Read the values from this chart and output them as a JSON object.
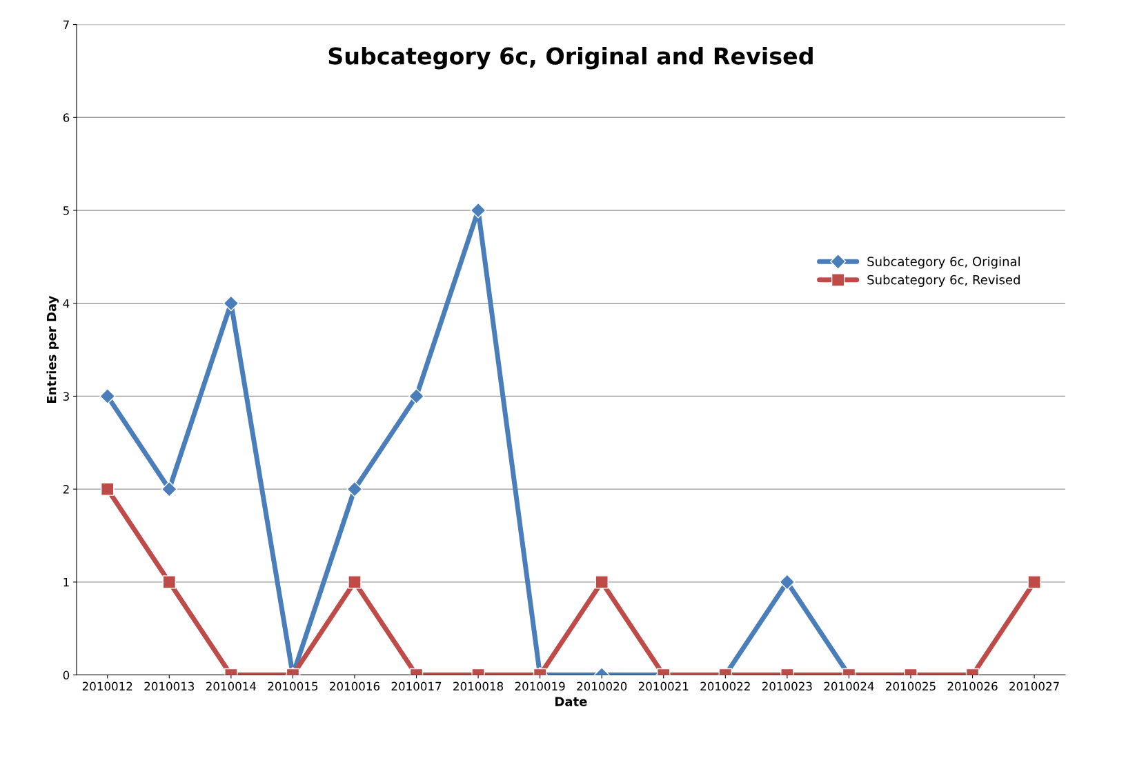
{
  "chart_data": {
    "type": "line",
    "title": "Subcategory 6c, Original and Revised",
    "xlabel": "Date",
    "ylabel": "Entries per Day",
    "categories": [
      "2010012",
      "2010013",
      "2010014",
      "2010015",
      "2010016",
      "2010017",
      "2010018",
      "2010019",
      "2010020",
      "2010021",
      "2010022",
      "2010023",
      "2010024",
      "2010025",
      "2010026",
      "2010027"
    ],
    "series": [
      {
        "name": "Subcategory 6c, Original",
        "color": "#4a7ebb",
        "marker": "diamond",
        "values": [
          3,
          2,
          4,
          0,
          2,
          3,
          5,
          0,
          0,
          0,
          0,
          1,
          0,
          null,
          null,
          null
        ]
      },
      {
        "name": "Subcategory 6c, Revised",
        "color": "#be4b48",
        "marker": "square",
        "values": [
          2,
          1,
          0,
          0,
          1,
          0,
          0,
          0,
          1,
          0,
          0,
          0,
          0,
          0,
          0,
          1
        ]
      }
    ],
    "ylim": [
      0,
      7
    ],
    "yticks": [
      0,
      1,
      2,
      3,
      4,
      5,
      6,
      7
    ],
    "grid": "y",
    "legend": "right",
    "line_style": "solid"
  }
}
